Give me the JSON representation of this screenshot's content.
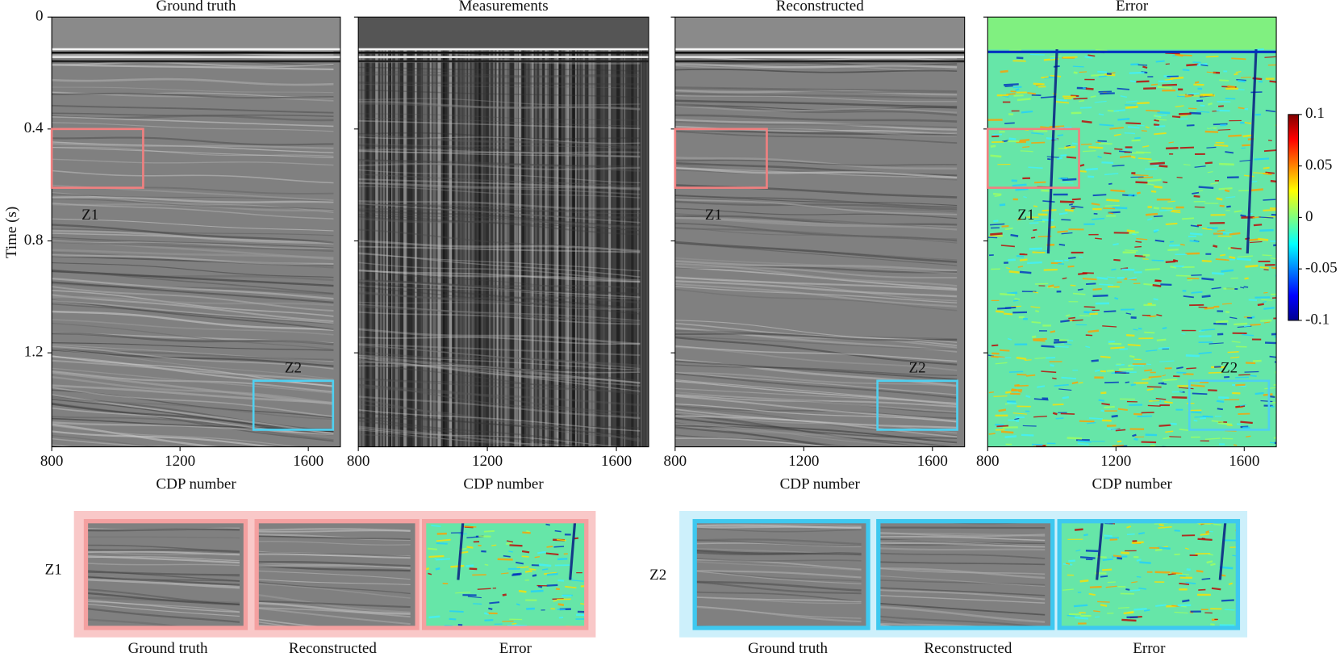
{
  "panels": [
    {
      "title": "Ground truth",
      "kind": "seismic",
      "show_zones": true,
      "ytick_labels": true
    },
    {
      "title": "Measurements",
      "kind": "measured",
      "show_zones": false,
      "ytick_labels": false
    },
    {
      "title": "Reconstructed",
      "kind": "seismic",
      "show_zones": true,
      "ytick_labels": false
    },
    {
      "title": "Error",
      "kind": "error",
      "show_zones": true,
      "ytick_labels": false
    }
  ],
  "x_axis": {
    "label": "CDP number",
    "lim": [
      800,
      1700
    ],
    "ticks": [
      800,
      1200,
      1600
    ]
  },
  "y_axis": {
    "label": "Time (s)",
    "lim": [
      0,
      1.536
    ],
    "ticks": [
      0,
      0.4,
      0.8,
      1.2
    ]
  },
  "colorbar": {
    "lim": [
      -0.1,
      0.1
    ],
    "ticks": [
      0.1,
      0.05,
      0,
      -0.05,
      -0.1
    ]
  },
  "zones": [
    {
      "label": "Z1",
      "color": "#f08080",
      "cdp": [
        800,
        1085
      ],
      "time": [
        0.4,
        0.61
      ],
      "label_side": "below"
    },
    {
      "label": "Z2",
      "color": "#4fd0f0",
      "cdp": [
        1429,
        1677
      ],
      "time": [
        1.3,
        1.475
      ],
      "label_side": "above"
    }
  ],
  "zooms": [
    {
      "label": "Z1",
      "frame": "#f9c8c8",
      "border": "#f4a0a0",
      "captions": [
        "Ground truth",
        "Reconstructed",
        "Error"
      ]
    },
    {
      "label": "Z2",
      "frame": "#cdf0fb",
      "border": "#3ec8ef",
      "captions": [
        "Ground truth",
        "Reconstructed",
        "Error"
      ]
    }
  ]
}
